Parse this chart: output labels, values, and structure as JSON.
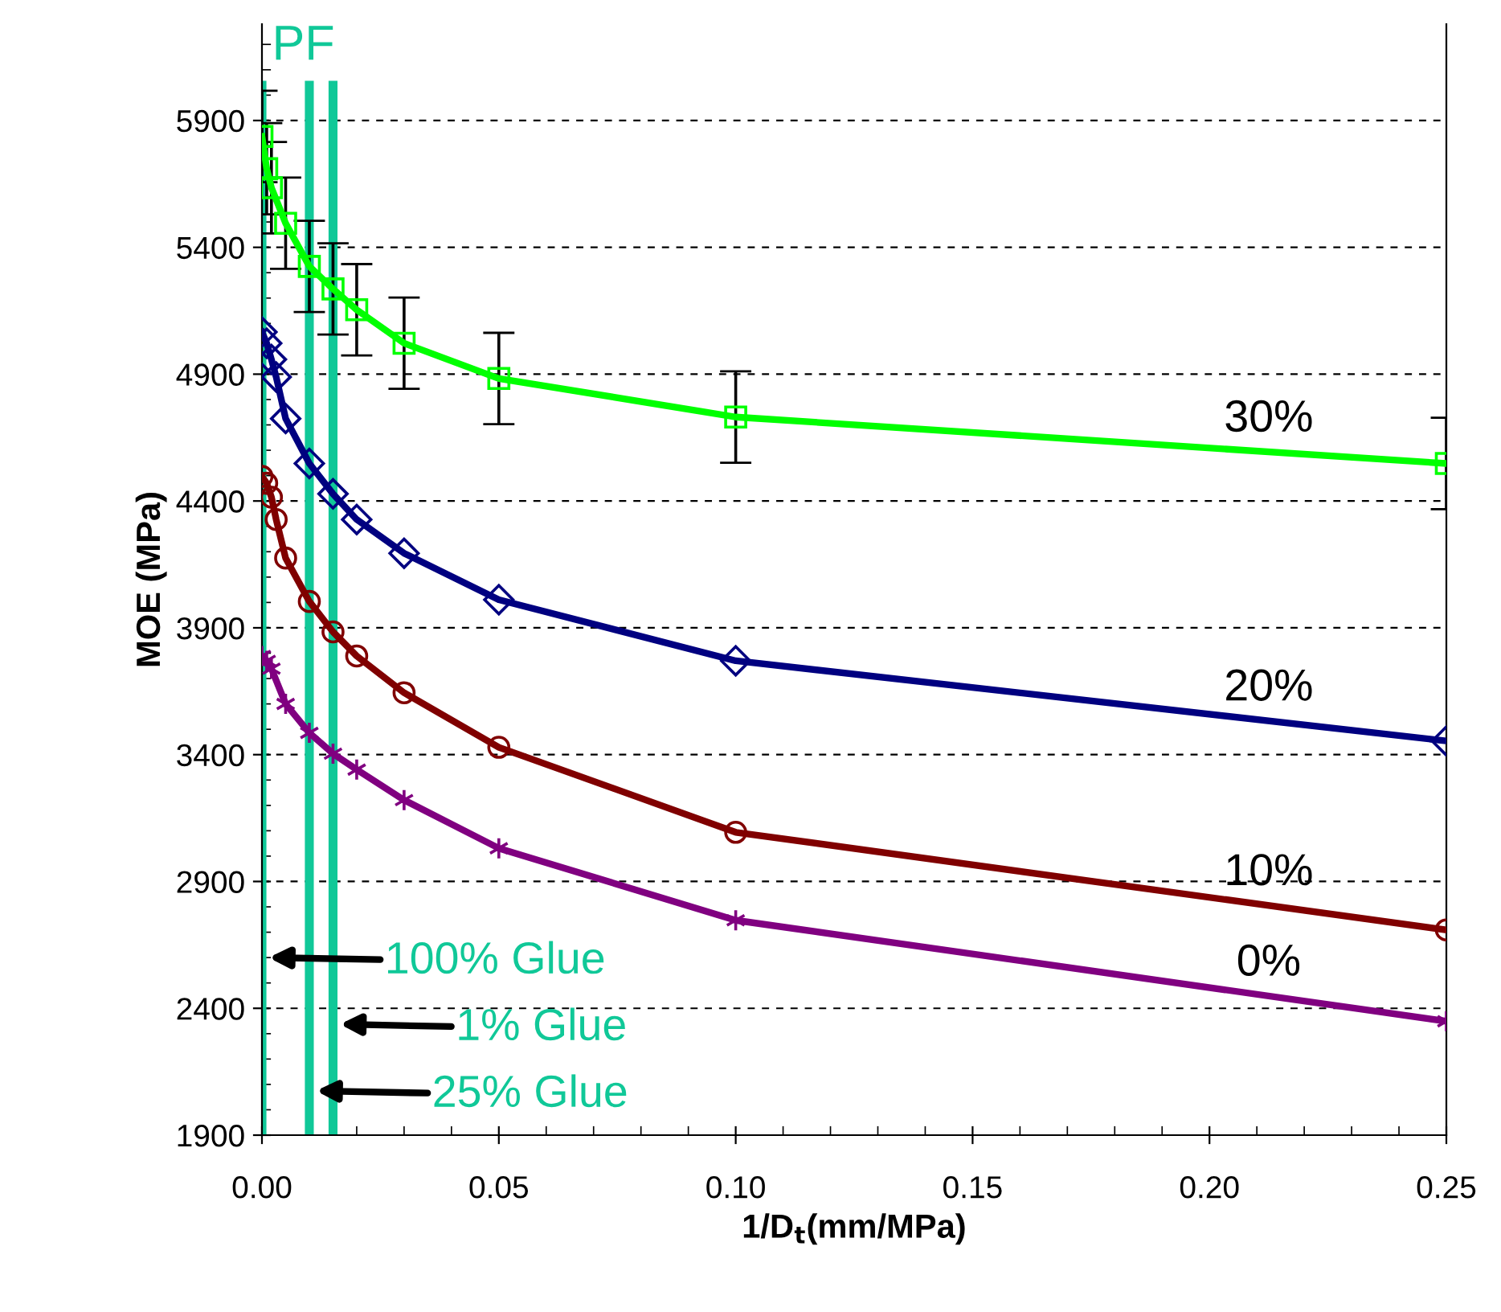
{
  "chart_data": {
    "type": "line",
    "xlabel": "1/D$_{t}$(mm/MPa)",
    "ylabel": "MOE (MPa)",
    "xlim": [
      0,
      0.25
    ],
    "ylim": [
      1900,
      6280
    ],
    "xticks": [
      {
        "value": 0,
        "label": "0.00"
      },
      0.05,
      {
        "value": 0.1,
        "label": "0.10"
      },
      0.15,
      {
        "value": 0.2,
        "label": "0.20"
      },
      0.25
    ],
    "yticks": [
      1900,
      2400,
      2900,
      3400,
      3900,
      4400,
      4900,
      5400,
      5900
    ],
    "grid": "y",
    "line_style": "solid",
    "series": [
      {
        "name": "30%",
        "color": "#00ff00",
        "marker": "square",
        "x": [
          0,
          0.001,
          0.002,
          0.005,
          0.01,
          0.015,
          0.02,
          0.03,
          0.05,
          0.1,
          0.25
        ],
        "values": [
          5837,
          5710,
          5635,
          5495,
          5325,
          5236,
          5154,
          5022,
          4883,
          4731,
          4548
        ],
        "errors": [
          180,
          180,
          180,
          180,
          180,
          180,
          180,
          180,
          180,
          180,
          180
        ]
      },
      {
        "name": "20%",
        "color": "#000080",
        "marker": "diamond",
        "x": [
          0,
          0.001,
          0.002,
          0.003,
          0.005,
          0.01,
          0.015,
          0.02,
          0.03,
          0.05,
          0.1,
          0.25
        ],
        "values": [
          5066,
          5022,
          4958,
          4889,
          4725,
          4548,
          4428,
          4327,
          4194,
          4011,
          3770,
          3454
        ]
      },
      {
        "name": "10%",
        "color": "#800000",
        "marker": "circle",
        "x": [
          0,
          0.001,
          0.002,
          0.003,
          0.005,
          0.01,
          0.015,
          0.02,
          0.03,
          0.05,
          0.1,
          0.25
        ],
        "values": [
          4497,
          4470,
          4415,
          4327,
          4175,
          4004,
          3884,
          3789,
          3644,
          3429,
          3094,
          2709
        ]
      },
      {
        "name": "0%",
        "color": "#800080",
        "marker": "cross",
        "x": [
          0,
          0.001,
          0.002,
          0.005,
          0.01,
          0.015,
          0.02,
          0.03,
          0.05,
          0.1,
          0.25
        ],
        "values": [
          3789,
          3770,
          3739,
          3600,
          3486,
          3404,
          3341,
          3221,
          3031,
          2747,
          2349
        ]
      }
    ],
    "ref_lines": [
      {
        "axis": "x",
        "value": 0,
        "label": "100% Glue",
        "color": "#10c898"
      },
      {
        "axis": "x",
        "value": 0.015,
        "label": "1% Glue",
        "color": "#10c898"
      },
      {
        "axis": "x",
        "value": 0.01,
        "label": "25% Glue",
        "color": "#10c898"
      }
    ],
    "annotations": [
      "PF"
    ]
  }
}
